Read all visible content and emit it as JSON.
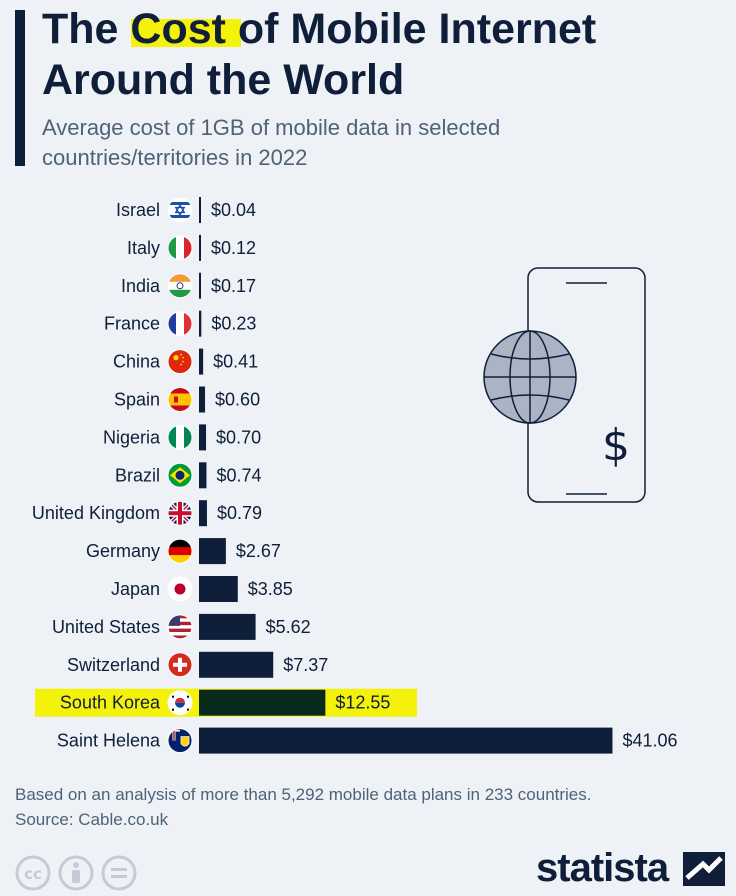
{
  "header": {
    "title": "The Cost of Mobile Internet Around the World",
    "subtitle": "Average cost of 1GB of mobile data in selected countries/territories in 2022"
  },
  "chart_data": {
    "type": "bar",
    "orientation": "horizontal",
    "categories": [
      "Israel",
      "Italy",
      "India",
      "France",
      "China",
      "Spain",
      "Nigeria",
      "Brazil",
      "United Kingdom",
      "Germany",
      "Japan",
      "United States",
      "Switzerland",
      "South Korea",
      "Saint Helena"
    ],
    "values": [
      0.04,
      0.12,
      0.17,
      0.23,
      0.41,
      0.6,
      0.7,
      0.74,
      0.79,
      2.67,
      3.85,
      5.62,
      7.37,
      12.55,
      41.06
    ],
    "value_labels": [
      "$0.04",
      "$0.12",
      "$0.17",
      "$0.23",
      "$0.41",
      "$0.60",
      "$0.70",
      "$0.74",
      "$0.79",
      "$2.67",
      "$3.85",
      "$5.62",
      "$7.37",
      "$12.55",
      "$41.06"
    ],
    "highlighted": "South Korea",
    "flags": [
      "israel-flag-icon",
      "italy-flag-icon",
      "india-flag-icon",
      "france-flag-icon",
      "china-flag-icon",
      "spain-flag-icon",
      "nigeria-flag-icon",
      "brazil-flag-icon",
      "uk-flag-icon",
      "germany-flag-icon",
      "japan-flag-icon",
      "usa-flag-icon",
      "switzerland-flag-icon",
      "south-korea-flag-icon",
      "saint-helena-flag-icon"
    ],
    "grid": false,
    "legend": "none"
  },
  "illustration": {
    "icon": "phone-globe-dollar-icon"
  },
  "footer": {
    "note": "Based on an analysis of more than 5,292 mobile data plans in 233 countries.",
    "source": "Source: Cable.co.uk",
    "brand": "statista",
    "license_icons": [
      "cc-icon",
      "attribution-icon",
      "no-derivatives-icon"
    ]
  },
  "colors": {
    "bar": "#0f1f3a",
    "background": "#eef2f6",
    "highlight": "#f4f20a",
    "title": "#0f1f3a",
    "subtitle": "#4f6277"
  }
}
